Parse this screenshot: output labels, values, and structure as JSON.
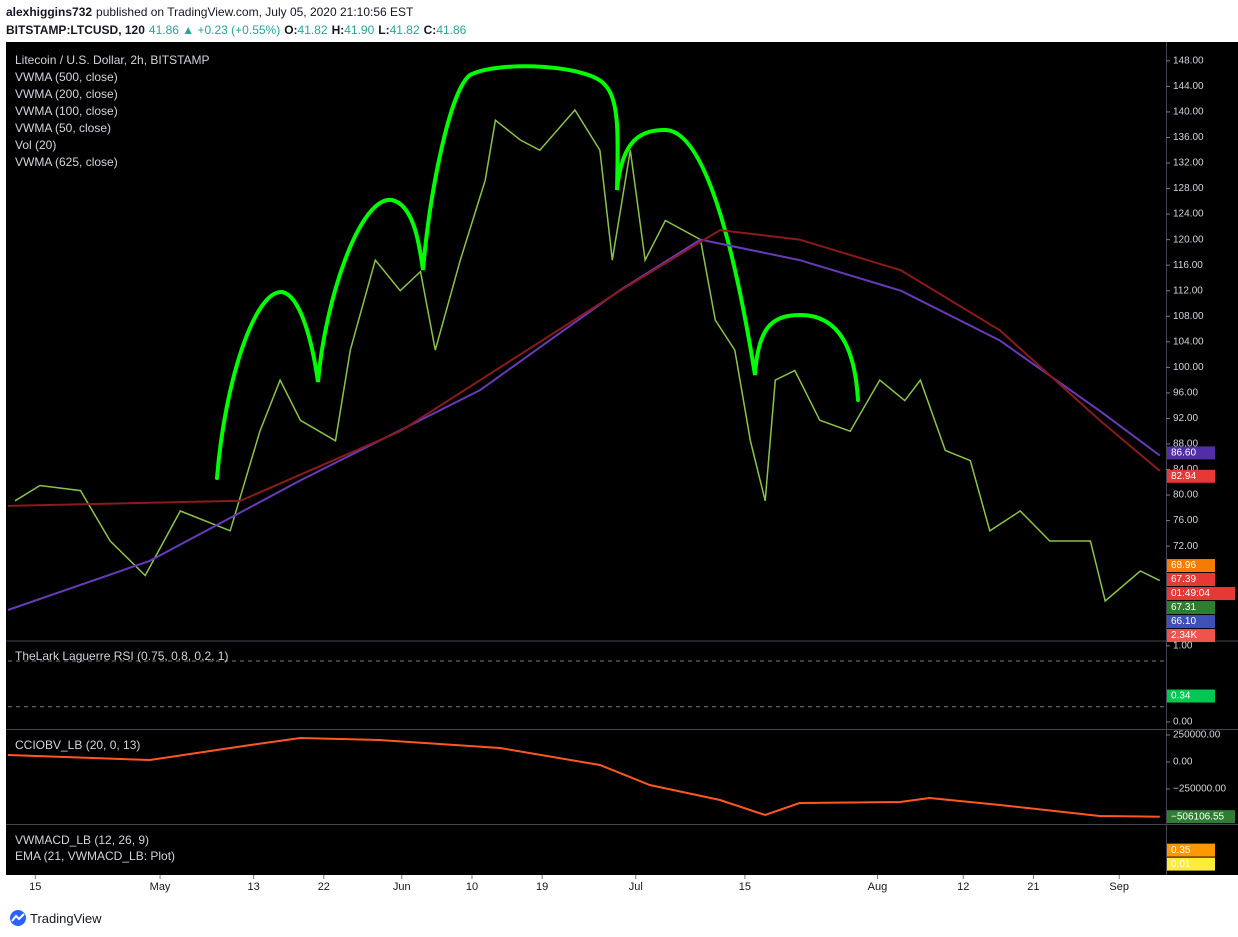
{
  "header": {
    "line1": [
      {
        "text": "alexhiggins732",
        "bold": true,
        "color": "#131722"
      },
      {
        "text": "published on TradingView.com, July 05, 2020 21:10:56 EST",
        "bold": false,
        "color": "#131722"
      }
    ],
    "line2": [
      {
        "text": "BITSTAMP:LTCUSD, 120",
        "bold": true,
        "color": "#131722"
      },
      {
        "text": "41.86 ▲ +0.23 (+0.55%)",
        "bold": false,
        "color": "#26a69a"
      },
      {
        "text": "O:",
        "bold": true,
        "color": "#131722"
      },
      {
        "text": "41.82",
        "bold": false,
        "color": "#26a69a"
      },
      {
        "text": "H:",
        "bold": true,
        "color": "#131722"
      },
      {
        "text": "41.90",
        "bold": false,
        "color": "#26a69a"
      },
      {
        "text": "L:",
        "bold": true,
        "color": "#131722"
      },
      {
        "text": "41.82",
        "bold": false,
        "color": "#26a69a"
      },
      {
        "text": "C:",
        "bold": true,
        "color": "#131722"
      },
      {
        "text": "41.86",
        "bold": false,
        "color": "#26a69a"
      }
    ]
  },
  "footer": {
    "brand": "TradingView"
  },
  "chart_data": [
    {
      "type": "line",
      "series": [
        {
          "name": "Litecoin / U.S. Dollar, 2h, BITSTAMP",
          "color": "#8bc34a",
          "x": [
            -2.6,
            0.6,
            5.8,
            9.6,
            14.1,
            18.6,
            25,
            28.8,
            31.4,
            34,
            38.5,
            40.4,
            43.6,
            46.8,
            49.4,
            51.3,
            54.5,
            57.7,
            59,
            62.2,
            64.7,
            69.2,
            72.4,
            74,
            76.3,
            78.2,
            80.8,
            85.3,
            87.2,
            89.7,
            91.7,
            93.6,
            94.9,
            97.4,
            100.6,
            104.5,
            108.3,
            111.5,
            113.5,
            116.7,
            119.9,
            122.4,
            126.3,
            130.1,
            135.3,
            137.2,
            141.7,
            144.2
          ],
          "values": [
            79.1,
            81.5,
            80.7,
            72.8,
            67.4,
            77.5,
            74.4,
            90,
            98,
            91.7,
            88.5,
            102.7,
            116.8,
            112,
            115,
            102.7,
            116.8,
            129.3,
            138.7,
            135.6,
            134,
            140.3,
            134,
            116.8,
            134,
            116.8,
            123,
            120,
            107.4,
            102.7,
            88.5,
            79.1,
            98,
            99.5,
            91.7,
            90,
            98,
            94.8,
            98,
            87,
            85.4,
            74.4,
            77.5,
            72.8,
            72.8,
            63.4,
            68.1,
            66.6
          ]
        },
        {
          "name": "VWMA (625, close)",
          "color": "#673ab7",
          "x": [
            -3.5,
            14.7,
            34,
            57,
            75,
            85.3,
            98,
            111,
            123.7,
            136.5,
            144.2
          ],
          "values": [
            62,
            69.7,
            82.3,
            96.4,
            112.1,
            120,
            116.8,
            112,
            104.2,
            93.2,
            86.2
          ]
        },
        {
          "name": "VWMA (500, close)",
          "color": "#8b1a1a",
          "x": [
            -3.5,
            26.3,
            46.8,
            75,
            87.8,
            98,
            111,
            123.7,
            136.5,
            144.2
          ],
          "values": [
            78.3,
            79.1,
            90,
            112,
            121.5,
            120,
            115.2,
            105.8,
            91.7,
            83.8
          ]
        }
      ],
      "other_studies": [
        "VWMA (200, close)",
        "VWMA (100, close)",
        "VWMA (50, close)",
        "Vol (20)"
      ],
      "xlim": [
        -3.5,
        145
      ],
      "xticks": [
        {
          "value": 0,
          "label": "15"
        },
        {
          "value": 16,
          "label": "May"
        },
        {
          "value": 28,
          "label": "13"
        },
        {
          "value": 37,
          "label": "22"
        },
        {
          "value": 47,
          "label": "Jun"
        },
        {
          "value": 56,
          "label": "10"
        },
        {
          "value": 65,
          "label": "19"
        },
        {
          "value": 77,
          "label": "Jul"
        },
        {
          "value": 91,
          "label": "15"
        },
        {
          "value": 108,
          "label": "Aug"
        },
        {
          "value": 119,
          "label": "12"
        },
        {
          "value": 128,
          "label": "21"
        },
        {
          "value": 139,
          "label": "Sep"
        }
      ],
      "ylim": [
        57.3,
        149.7
      ],
      "yticks": [
        {
          "value": 72,
          "label": "72.00"
        },
        {
          "value": 76,
          "label": "76.00"
        },
        {
          "value": 80,
          "label": "80.00"
        },
        {
          "value": 84,
          "label": "84.00"
        },
        {
          "value": 88,
          "label": "88.00"
        },
        {
          "value": 92,
          "label": "92.00"
        },
        {
          "value": 96,
          "label": "96.00"
        },
        {
          "value": 100,
          "label": "100.00"
        },
        {
          "value": 104,
          "label": "104.00"
        },
        {
          "value": 108,
          "label": "108.00"
        },
        {
          "value": 112,
          "label": "112.00"
        },
        {
          "value": 116,
          "label": "116.00"
        },
        {
          "value": 120,
          "label": "120.00"
        },
        {
          "value": 124,
          "label": "124.00"
        },
        {
          "value": 128,
          "label": "128.00"
        },
        {
          "value": 132,
          "label": "132.00"
        },
        {
          "value": 136,
          "label": "136.00"
        },
        {
          "value": 140,
          "label": "140.00"
        },
        {
          "value": 144,
          "label": "144.00"
        },
        {
          "value": 148,
          "label": "148.00"
        }
      ],
      "tags": [
        {
          "value": 86.6,
          "label": "86.60",
          "color": "#512da8"
        },
        {
          "value": 82.94,
          "label": "82.94",
          "color": "#e53935"
        },
        {
          "value": 68.96,
          "label": "68.96",
          "color": "#f57c00"
        },
        {
          "value": 67.39,
          "label": "67.39",
          "color": "#e53935"
        },
        {
          "label": "01:49:04",
          "color": "#e53935"
        },
        {
          "value": 67.31,
          "label": "67.31",
          "color": "#2e7d32"
        },
        {
          "value": 66.1,
          "label": "66.10",
          "color": "#3f51b5"
        },
        {
          "label": "2.34K",
          "color": "#ef5350"
        }
      ]
    },
    {
      "type": "line",
      "title": "TheLark Laguerre RSI (0.75, 0.8, 0.2, 1)",
      "ylim": [
        -0.08,
        1.05
      ],
      "yticks": [
        {
          "value": 0,
          "label": "0.00"
        },
        {
          "value": 1,
          "label": "1.00"
        }
      ],
      "levels": [
        0.8,
        0.2
      ],
      "tags": [
        {
          "value": 0.34,
          "label": "0.34",
          "color": "#00c853"
        }
      ]
    },
    {
      "type": "line",
      "title": "CCIOBV_LB (20, 0, 13)",
      "series": [
        {
          "color": "#ff5722",
          "x": [
            -3.5,
            14.7,
            27.6,
            34,
            44.2,
            59.6,
            72.4,
            78.8,
            87.8,
            93.6,
            98,
            110.9,
            114.7,
            123.7,
            136.5,
            144.2
          ],
          "values": [
            64800,
            18500,
            157400,
            222000,
            203700,
            129600,
            -27800,
            -213000,
            -351900,
            -490700,
            -379600,
            -370000,
            -333300,
            -398100,
            -500000,
            -506106.55
          ]
        }
      ],
      "ylim": [
        -564800,
        287000
      ],
      "yticks": [
        {
          "value": -250000,
          "label": "−250000.00"
        },
        {
          "value": 0,
          "label": "0.00"
        },
        {
          "value": 250000,
          "label": "250000.00"
        }
      ],
      "tags": [
        {
          "value": -506106.55,
          "label": "−506106.55",
          "color": "#2e7d32"
        }
      ]
    },
    {
      "type": "line",
      "title": "VWMACD_LB (12, 26, 9)",
      "subtitle": "EMA (21, VWMACD_LB: Plot)",
      "ylim": [
        -0.21,
        0.94
      ],
      "tags": [
        {
          "value": 0.35,
          "label": "0.35",
          "color": "#ff9800"
        },
        {
          "value": 0.01,
          "label": "0.01",
          "color": "#ffeb3b"
        }
      ]
    }
  ]
}
